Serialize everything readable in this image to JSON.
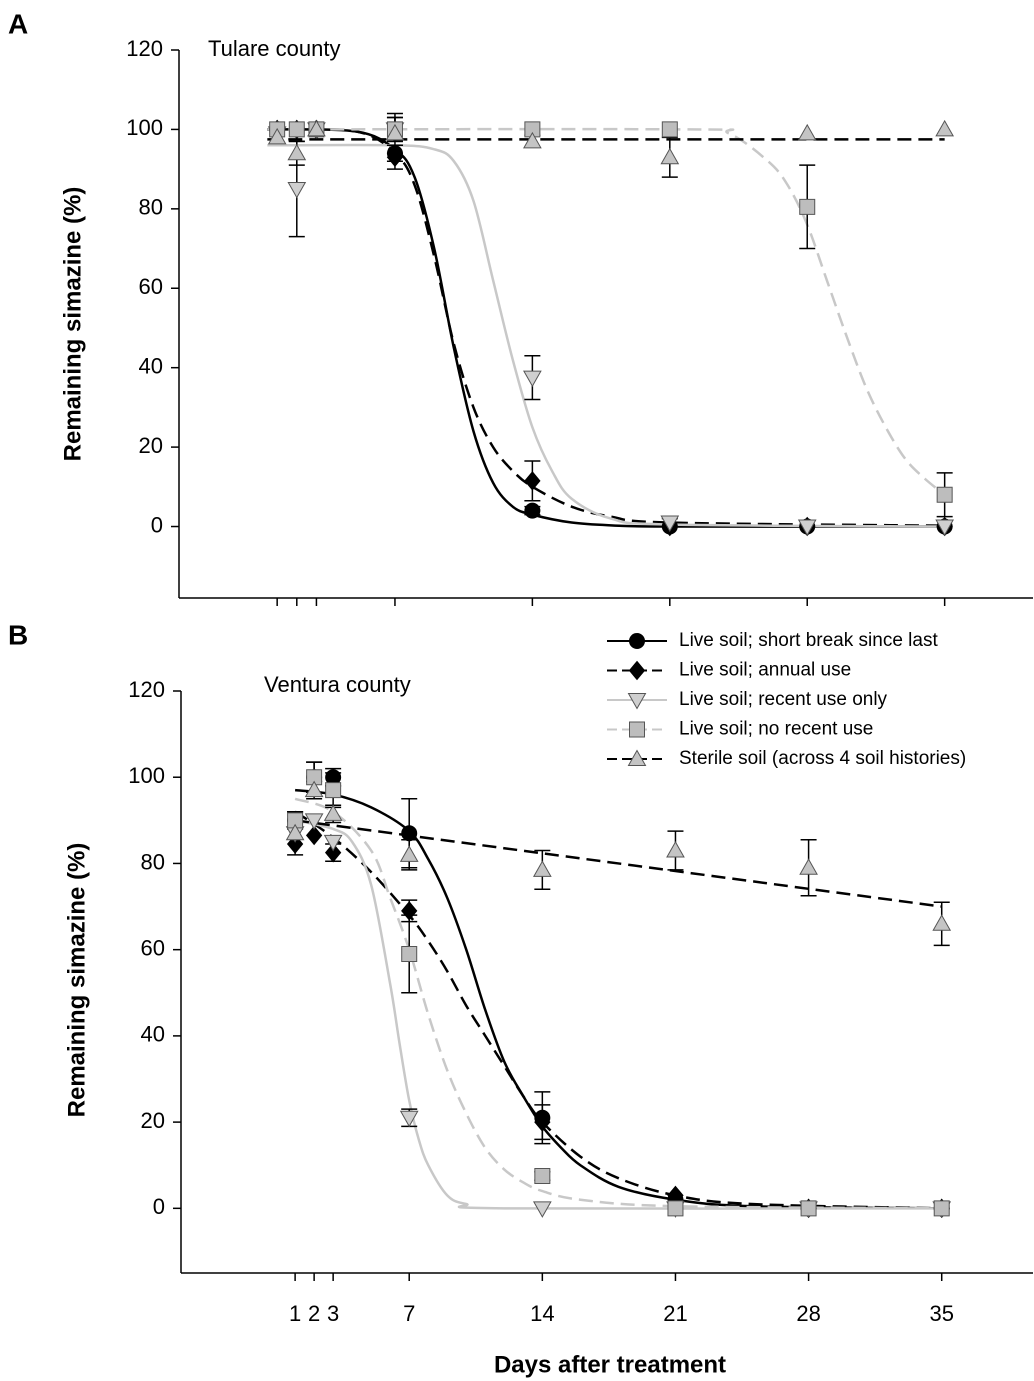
{
  "chart_data": [
    {
      "type": "line",
      "panel": "A",
      "annotation": "Tulare county",
      "ylabel": "Remaining simazine (%)",
      "xlim": [
        -4,
        39.5
      ],
      "ylim": [
        -18,
        120
      ],
      "xticks": [
        1,
        2,
        3,
        7,
        14,
        21,
        28,
        35
      ],
      "yticks": [
        0,
        20,
        40,
        60,
        80,
        100,
        120
      ],
      "xtick_labels": false,
      "x": [
        1,
        2,
        3,
        7,
        14,
        21,
        28,
        35
      ],
      "series": [
        {
          "color": "#000000",
          "dash": false,
          "marker": "circle",
          "marker_color": "#000000",
          "values": [
            100,
            100,
            100,
            94,
            4,
            0,
            0,
            0
          ],
          "errors": [
            null,
            null,
            null,
            2,
            1,
            null,
            null,
            null
          ],
          "fit_x": [
            0.5,
            5,
            7,
            8,
            9,
            10,
            11,
            12,
            13,
            14,
            16,
            18,
            21,
            35
          ],
          "fit_y": [
            100,
            99.5,
            95,
            88,
            70,
            45,
            24,
            11,
            5,
            3,
            1,
            0.3,
            0,
            0
          ]
        },
        {
          "color": "#000000",
          "dash": true,
          "marker": "diamond",
          "marker_color": "#000000",
          "values": [
            100,
            100,
            100,
            93,
            11.5,
            0,
            0,
            0
          ],
          "errors": [
            null,
            null,
            null,
            3,
            5,
            null,
            null,
            null
          ],
          "fit_x": [
            0.5,
            5,
            7,
            8,
            9,
            10,
            11,
            12,
            13,
            14,
            16,
            18,
            21,
            35
          ],
          "fit_y": [
            100,
            99.5,
            94,
            86,
            68,
            46,
            30,
            20,
            14,
            10,
            5,
            2.5,
            1,
            0.2
          ]
        },
        {
          "color": "#c8c8c8",
          "dash": false,
          "marker": "triangle-down",
          "marker_color": "#cfcfcf",
          "values": [
            99,
            85,
            100,
            100,
            37.5,
            1,
            0,
            0
          ],
          "errors": [
            null,
            12,
            null,
            3,
            5.5,
            1,
            null,
            null
          ],
          "fit_x": [
            0.5,
            7,
            9,
            10,
            11,
            12,
            13,
            14,
            15,
            16,
            18,
            21,
            35
          ],
          "fit_y": [
            96,
            96,
            95,
            92,
            82,
            62,
            42,
            25,
            14,
            7,
            2,
            0.5,
            0
          ]
        },
        {
          "color": "#c8c8c8",
          "dash": true,
          "marker": "square",
          "marker_color": "#bdbdbd",
          "values": [
            100,
            100,
            100,
            100,
            100,
            100,
            80.5,
            8
          ],
          "errors": [
            null,
            null,
            null,
            3,
            null,
            null,
            10.5,
            5.5
          ],
          "fit_x": [
            0.5,
            22,
            24,
            26,
            27,
            28,
            29,
            30,
            31,
            32,
            33,
            34,
            35
          ],
          "fit_y": [
            100,
            100,
            99,
            92,
            86,
            76,
            62,
            48,
            35,
            25,
            17,
            12,
            8
          ]
        },
        {
          "color": "#000000",
          "dash": true,
          "marker": "triangle-up",
          "marker_color": "#c4c4c4",
          "values": [
            98,
            94,
            100,
            99,
            97,
            93,
            99,
            100
          ],
          "errors": [
            null,
            3,
            null,
            5,
            1.5,
            5,
            null,
            null
          ],
          "fit_x": [
            0.5,
            35
          ],
          "fit_y": [
            97.5,
            97.5
          ]
        }
      ]
    },
    {
      "type": "line",
      "panel": "B",
      "annotation": "Ventura county",
      "ylabel": "Remaining simazine (%)",
      "xlabel": "Days after treatment",
      "xlim": [
        -5,
        39.8
      ],
      "ylim": [
        -15,
        120
      ],
      "xticks": [
        1,
        2,
        3,
        7,
        14,
        21,
        28,
        35
      ],
      "yticks": [
        0,
        20,
        40,
        60,
        80,
        100,
        120
      ],
      "xtick_labels": true,
      "legend": "upper right",
      "x": [
        1,
        2,
        3,
        7,
        14,
        21,
        28,
        35
      ],
      "series": [
        {
          "name": "Live soil; short break since last",
          "color": "#000000",
          "dash": false,
          "marker": "circle",
          "marker_color": "#000000",
          "values": [
            90,
            100,
            100,
            87,
            21,
            2,
            0,
            0
          ],
          "errors": [
            2,
            3.5,
            2,
            8,
            6,
            null,
            null,
            null
          ],
          "fit_x": [
            1,
            3,
            5,
            7,
            8,
            9,
            10,
            11,
            12,
            13,
            14,
            15,
            16,
            18,
            21,
            25,
            35
          ],
          "fit_y": [
            97,
            96,
            93,
            87.5,
            81,
            72,
            60,
            46,
            34,
            26,
            19,
            14,
            10,
            5,
            2,
            0.5,
            0
          ]
        },
        {
          "name": "Live soil; annual use",
          "color": "#000000",
          "dash": true,
          "marker": "diamond",
          "marker_color": "#000000",
          "values": [
            84.5,
            86.5,
            82.5,
            69,
            20,
            3,
            0,
            0
          ],
          "errors": [
            null,
            null,
            2,
            2.5,
            4,
            null,
            null,
            null
          ],
          "fit_x": [
            1,
            3,
            5,
            7,
            8,
            9,
            10,
            11,
            12,
            13,
            14,
            16,
            18,
            21,
            25,
            35
          ],
          "fit_y": [
            92,
            86,
            78,
            68,
            62,
            55,
            47,
            40,
            33,
            26,
            20,
            12,
            7,
            3,
            1,
            0
          ]
        },
        {
          "name": "Live soil; recent use only",
          "color": "#c8c8c8",
          "dash": false,
          "marker": "triangle-down",
          "marker_color": "#cfcfcf",
          "values": [
            87,
            90,
            85,
            21,
            0,
            0,
            0,
            0
          ],
          "errors": [
            null,
            null,
            null,
            2,
            null,
            null,
            null,
            null
          ],
          "fit_x": [
            1,
            3,
            4,
            5,
            6,
            6.5,
            7,
            7.5,
            8,
            9,
            10,
            12,
            35
          ],
          "fit_y": [
            90,
            88,
            85,
            75,
            52,
            38,
            25,
            16,
            10,
            3,
            1,
            0,
            0
          ]
        },
        {
          "name": "Live soil; no recent use",
          "color": "#c8c8c8",
          "dash": true,
          "marker": "square",
          "marker_color": "#bdbdbd",
          "values": [
            90,
            100,
            97,
            59,
            7.5,
            0,
            0,
            0
          ],
          "errors": [
            null,
            3.5,
            4,
            9,
            1,
            null,
            null,
            null
          ],
          "fit_x": [
            1,
            3,
            5,
            6,
            7,
            8,
            9,
            10,
            11,
            12,
            13,
            14,
            16,
            21,
            35
          ],
          "fit_y": [
            95,
            92,
            83,
            72,
            60,
            45,
            32,
            22,
            14,
            9,
            6,
            4,
            2,
            0.5,
            0
          ]
        },
        {
          "name": "Sterile soil (across 4 soil histories)",
          "color": "#000000",
          "dash": true,
          "marker": "triangle-up",
          "marker_color": "#c4c4c4",
          "values": [
            87,
            97,
            91.5,
            82,
            78.5,
            83,
            79,
            66
          ],
          "errors": [
            5,
            2,
            2,
            3.5,
            4.5,
            4.5,
            6.5,
            5
          ],
          "fit_x": [
            1,
            35
          ],
          "fit_y": [
            90,
            70
          ]
        }
      ]
    }
  ]
}
